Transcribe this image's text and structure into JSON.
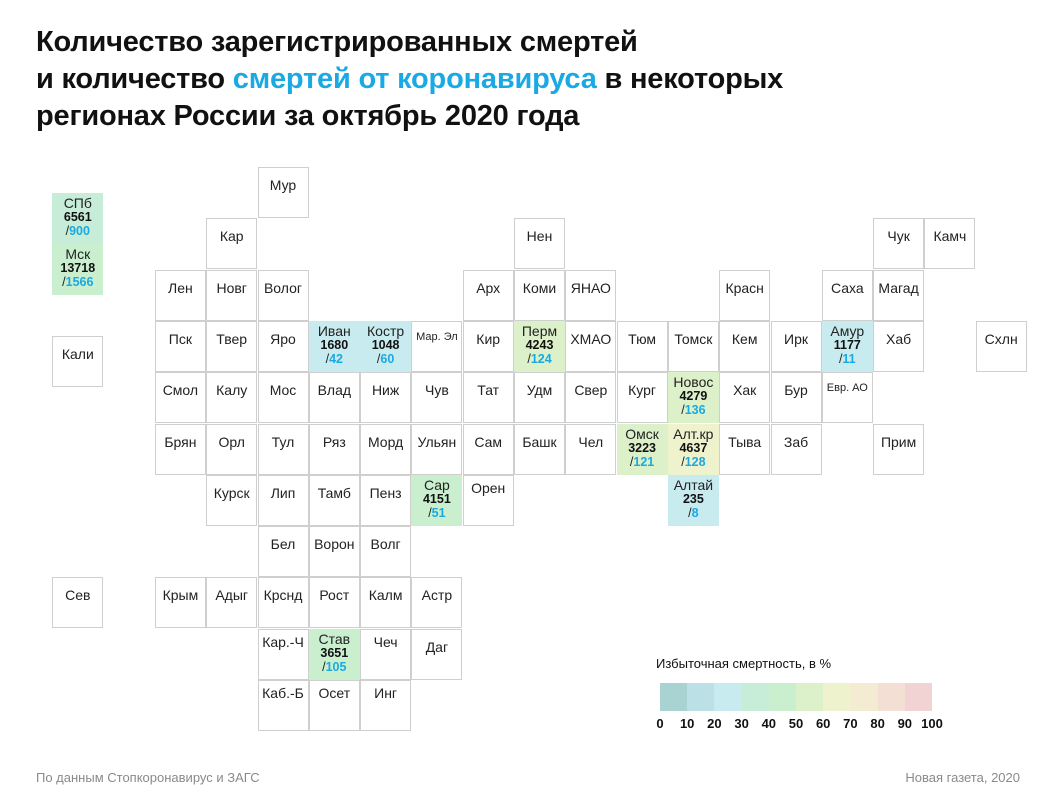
{
  "title": {
    "line1": "Количество зарегистрированных смертей",
    "line2_pre": "и количество ",
    "line2_accent": "смертей от коронавируса",
    "line2_post": " в некоторых",
    "line3": "регионах России за октябрь 2020 года"
  },
  "colors": {
    "accent": "#1aa9e3",
    "scale": [
      "#a9d3d2",
      "#bbe1e6",
      "#c8ebef",
      "#c7ecd8",
      "#c9efcf",
      "#dcf0c9",
      "#eef2cd",
      "#f4ecd2",
      "#f3dfd4",
      "#f2d3d3"
    ]
  },
  "regions": [
    {
      "name": "Мур",
      "col": 5,
      "row": 0
    },
    {
      "name": "СПб",
      "col": 1,
      "row": 0.5,
      "deaths": "6561",
      "covid": "900",
      "excess": 35
    },
    {
      "name": "Мск",
      "col": 1,
      "row": 1.5,
      "deaths": "13718",
      "covid": "1566",
      "excess": 45
    },
    {
      "name": "Кар",
      "col": 4,
      "row": 1
    },
    {
      "name": "Нен",
      "col": 10,
      "row": 1
    },
    {
      "name": "Чук",
      "col": 17,
      "row": 1
    },
    {
      "name": "Камч",
      "col": 18,
      "row": 1
    },
    {
      "name": "Лен",
      "col": 3,
      "row": 2
    },
    {
      "name": "Новг",
      "col": 4,
      "row": 2
    },
    {
      "name": "Волог",
      "col": 5,
      "row": 2
    },
    {
      "name": "Арх",
      "col": 9,
      "row": 2
    },
    {
      "name": "Коми",
      "col": 10,
      "row": 2
    },
    {
      "name": "ЯНАО",
      "col": 11,
      "row": 2
    },
    {
      "name": "Красн",
      "col": 14,
      "row": 2
    },
    {
      "name": "Саха",
      "col": 16,
      "row": 2
    },
    {
      "name": "Магад",
      "col": 17,
      "row": 2
    },
    {
      "name": "Кали",
      "col": 1,
      "row": 3.3
    },
    {
      "name": "Пск",
      "col": 3,
      "row": 3
    },
    {
      "name": "Твер",
      "col": 4,
      "row": 3
    },
    {
      "name": "Яро",
      "col": 5,
      "row": 3
    },
    {
      "name": "Иван",
      "col": 6,
      "row": 3,
      "deaths": "1680",
      "covid": "42",
      "excess": 22
    },
    {
      "name": "Костр",
      "col": 7,
      "row": 3,
      "deaths": "1048",
      "covid": "60",
      "excess": 25
    },
    {
      "name": "Мар. Эл",
      "col": 8,
      "row": 3,
      "small": true
    },
    {
      "name": "Кир",
      "col": 9,
      "row": 3
    },
    {
      "name": "Перм",
      "col": 10,
      "row": 3,
      "deaths": "4243",
      "covid": "124",
      "excess": 50
    },
    {
      "name": "ХМАО",
      "col": 11,
      "row": 3
    },
    {
      "name": "Тюм",
      "col": 12,
      "row": 3
    },
    {
      "name": "Томск",
      "col": 13,
      "row": 3
    },
    {
      "name": "Кем",
      "col": 14,
      "row": 3
    },
    {
      "name": "Ирк",
      "col": 15,
      "row": 3
    },
    {
      "name": "Амур",
      "col": 16,
      "row": 3,
      "deaths": "1177",
      "covid": "11",
      "excess": 22
    },
    {
      "name": "Хаб",
      "col": 17,
      "row": 3
    },
    {
      "name": "Схлн",
      "col": 19,
      "row": 3
    },
    {
      "name": "Смол",
      "col": 3,
      "row": 4
    },
    {
      "name": "Калу",
      "col": 4,
      "row": 4
    },
    {
      "name": "Мос",
      "col": 5,
      "row": 4
    },
    {
      "name": "Влад",
      "col": 6,
      "row": 4
    },
    {
      "name": "Ниж",
      "col": 7,
      "row": 4
    },
    {
      "name": "Чув",
      "col": 8,
      "row": 4
    },
    {
      "name": "Тат",
      "col": 9,
      "row": 4
    },
    {
      "name": "Удм",
      "col": 10,
      "row": 4
    },
    {
      "name": "Свер",
      "col": 11,
      "row": 4
    },
    {
      "name": "Кург",
      "col": 12,
      "row": 4
    },
    {
      "name": "Новос",
      "col": 13,
      "row": 4,
      "deaths": "4279",
      "covid": "136",
      "excess": 52
    },
    {
      "name": "Хак",
      "col": 14,
      "row": 4
    },
    {
      "name": "Бур",
      "col": 15,
      "row": 4
    },
    {
      "name": "Евр. АО",
      "col": 16,
      "row": 4,
      "small": true
    },
    {
      "name": "Брян",
      "col": 3,
      "row": 5
    },
    {
      "name": "Орл",
      "col": 4,
      "row": 5
    },
    {
      "name": "Тул",
      "col": 5,
      "row": 5
    },
    {
      "name": "Ряз",
      "col": 6,
      "row": 5
    },
    {
      "name": "Морд",
      "col": 7,
      "row": 5
    },
    {
      "name": "Ульян",
      "col": 8,
      "row": 5
    },
    {
      "name": "Сам",
      "col": 9,
      "row": 5
    },
    {
      "name": "Башк",
      "col": 10,
      "row": 5
    },
    {
      "name": "Чел",
      "col": 11,
      "row": 5
    },
    {
      "name": "Омск",
      "col": 12,
      "row": 5,
      "deaths": "3223",
      "covid": "121",
      "excess": 55
    },
    {
      "name": "Алт.кр",
      "col": 13,
      "row": 5,
      "deaths": "4637",
      "covid": "128",
      "excess": 65
    },
    {
      "name": "Тыва",
      "col": 14,
      "row": 5
    },
    {
      "name": "Заб",
      "col": 15,
      "row": 5
    },
    {
      "name": "Прим",
      "col": 17,
      "row": 5
    },
    {
      "name": "Курск",
      "col": 4,
      "row": 6
    },
    {
      "name": "Лип",
      "col": 5,
      "row": 6
    },
    {
      "name": "Тамб",
      "col": 6,
      "row": 6
    },
    {
      "name": "Пенз",
      "col": 7,
      "row": 6
    },
    {
      "name": "Сар",
      "col": 8,
      "row": 6,
      "deaths": "4151",
      "covid": "51",
      "excess": 45
    },
    {
      "name": "Орен",
      "col": 9,
      "row": 6,
      "top": true
    },
    {
      "name": "Алтай",
      "col": 13,
      "row": 6,
      "deaths": "235",
      "covid": "8",
      "excess": 25
    },
    {
      "name": "Бел",
      "col": 5,
      "row": 7
    },
    {
      "name": "Ворон",
      "col": 6,
      "row": 7
    },
    {
      "name": "Волг",
      "col": 7,
      "row": 7
    },
    {
      "name": "Сев",
      "col": 1,
      "row": 8
    },
    {
      "name": "Крым",
      "col": 3,
      "row": 8
    },
    {
      "name": "Адыг",
      "col": 4,
      "row": 8
    },
    {
      "name": "Крснд",
      "col": 5,
      "row": 8
    },
    {
      "name": "Рост",
      "col": 6,
      "row": 8
    },
    {
      "name": "Калм",
      "col": 7,
      "row": 8
    },
    {
      "name": "Астр",
      "col": 8,
      "row": 8
    },
    {
      "name": "Кар.-Ч",
      "col": 5,
      "row": 9,
      "top": true
    },
    {
      "name": "Став",
      "col": 6,
      "row": 9,
      "deaths": "3651",
      "covid": "105",
      "excess": 45
    },
    {
      "name": "Чеч",
      "col": 7,
      "row": 9,
      "top": true
    },
    {
      "name": "Даг",
      "col": 8,
      "row": 9
    },
    {
      "name": "Каб.-Б",
      "col": 5,
      "row": 10,
      "top": true
    },
    {
      "name": "Осет",
      "col": 6,
      "row": 10,
      "top": true
    },
    {
      "name": "Инг",
      "col": 7,
      "row": 10,
      "top": true
    }
  ],
  "legend": {
    "title": "Избыточная смертность, в %",
    "ticks": [
      "0",
      "10",
      "20",
      "30",
      "40",
      "50",
      "60",
      "70",
      "80",
      "90",
      "100"
    ]
  },
  "footer": {
    "source": "По данным Стопкоронавирус и ЗАГС",
    "credit": "Новая газета, 2020"
  }
}
